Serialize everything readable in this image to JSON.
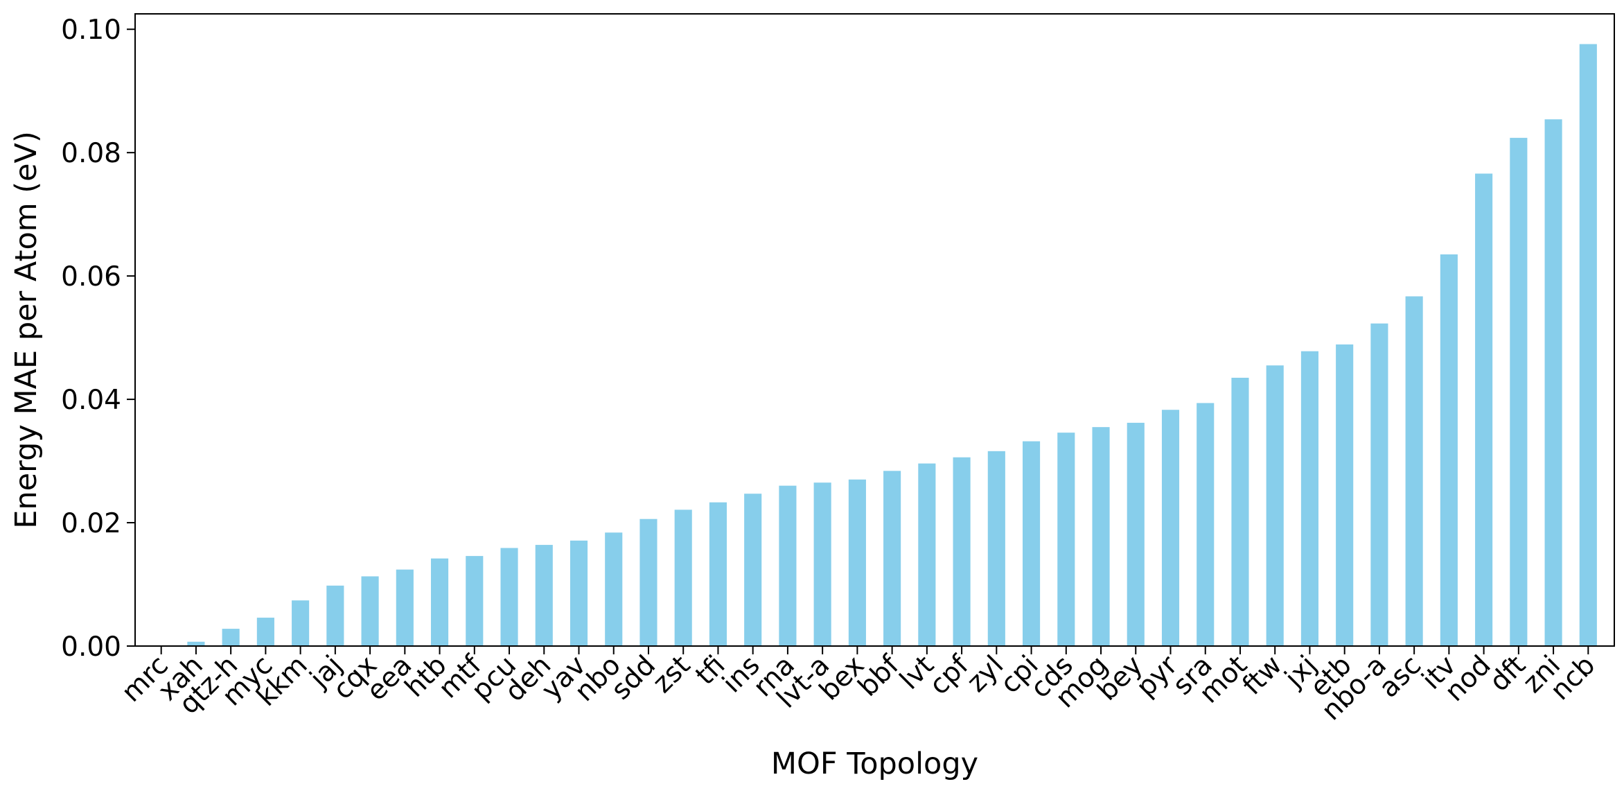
{
  "chart_data": {
    "type": "bar",
    "title": "",
    "xlabel": "MOF Topology",
    "ylabel": "Energy MAE per Atom (eV)",
    "ylim": [
      0,
      0.1025
    ],
    "yticks": [
      0.0,
      0.02,
      0.04,
      0.06,
      0.08,
      0.1
    ],
    "ytick_labels": [
      "0.00",
      "0.02",
      "0.04",
      "0.06",
      "0.08",
      "0.10"
    ],
    "grid": false,
    "legend": "none",
    "bar_color": "#87CEEB",
    "categories": [
      "mrc",
      "xah",
      "qtz-h",
      "myc",
      "kkm",
      "jaj",
      "cqx",
      "eea",
      "htb",
      "mtf",
      "pcu",
      "deh",
      "yav",
      "nbo",
      "sdd",
      "zst",
      "tfi",
      "ins",
      "rna",
      "lvt-a",
      "bex",
      "bbf",
      "lvt",
      "cpf",
      "zyl",
      "cpi",
      "cds",
      "mog",
      "bey",
      "pyr",
      "sra",
      "mot",
      "ftw",
      "jxj",
      "etb",
      "nbo-a",
      "asc",
      "itv",
      "nod",
      "dft",
      "zni",
      "ncb"
    ],
    "values": [
      0.0,
      0.0007,
      0.0028,
      0.0046,
      0.0074,
      0.0098,
      0.0113,
      0.0124,
      0.0142,
      0.0146,
      0.0159,
      0.0164,
      0.0171,
      0.0184,
      0.0206,
      0.0221,
      0.0233,
      0.0247,
      0.026,
      0.0265,
      0.027,
      0.0284,
      0.0296,
      0.0306,
      0.0316,
      0.0332,
      0.0346,
      0.0355,
      0.0362,
      0.0383,
      0.0394,
      0.0435,
      0.0455,
      0.0478,
      0.0489,
      0.0523,
      0.0567,
      0.0635,
      0.0766,
      0.0824,
      0.0854,
      0.0976
    ]
  }
}
